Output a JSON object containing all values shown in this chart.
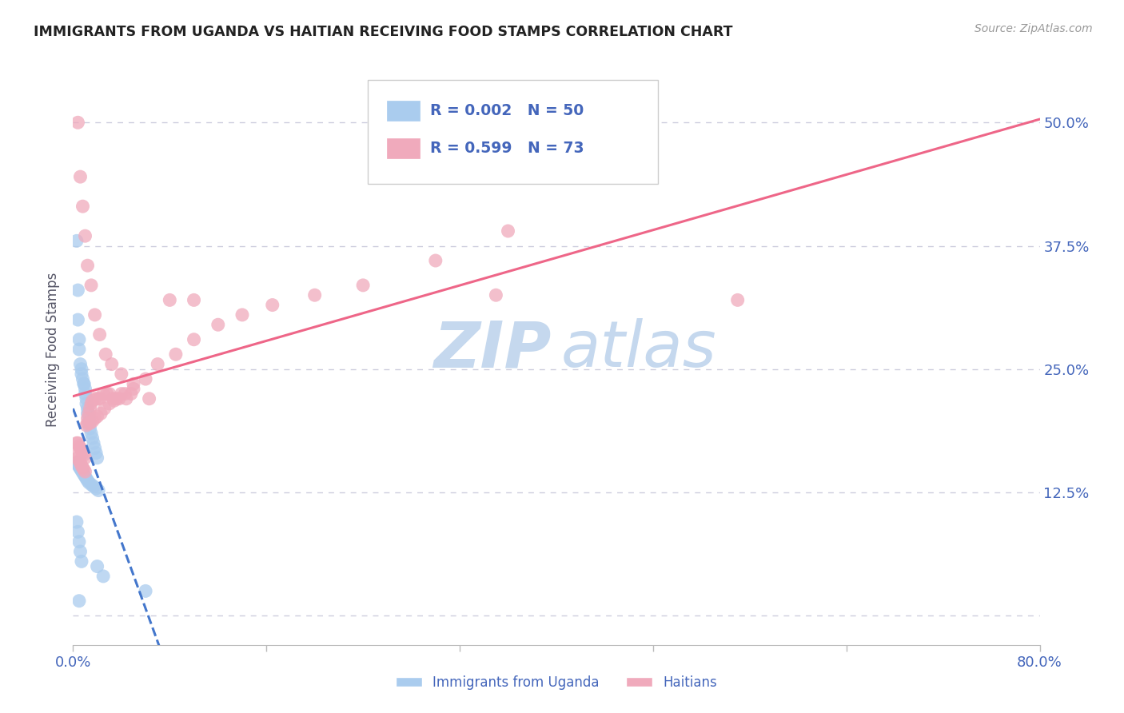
{
  "title": "IMMIGRANTS FROM UGANDA VS HAITIAN RECEIVING FOOD STAMPS CORRELATION CHART",
  "source": "Source: ZipAtlas.com",
  "ylabel": "Receiving Food Stamps",
  "uganda_R": 0.002,
  "uganda_N": 50,
  "haitian_R": 0.599,
  "haitian_N": 73,
  "uganda_color": "#aaccee",
  "haitian_color": "#f0aabc",
  "uganda_line_color": "#4477cc",
  "haitian_line_color": "#ee6688",
  "grid_color": "#ccccdd",
  "title_color": "#222222",
  "axis_label_color": "#4466bb",
  "watermark_color_zip": "#c5d8ee",
  "watermark_color_atlas": "#c5d8ee",
  "legend_label_uganda": "Immigrants from Uganda",
  "legend_label_haitian": "Haitians",
  "uganda_x": [
    0.003,
    0.004,
    0.004,
    0.005,
    0.005,
    0.006,
    0.007,
    0.007,
    0.008,
    0.009,
    0.009,
    0.01,
    0.01,
    0.011,
    0.011,
    0.012,
    0.012,
    0.013,
    0.013,
    0.014,
    0.015,
    0.016,
    0.017,
    0.018,
    0.019,
    0.02,
    0.003,
    0.004,
    0.005,
    0.006,
    0.007,
    0.008,
    0.009,
    0.01,
    0.011,
    0.012,
    0.013,
    0.015,
    0.017,
    0.019,
    0.021,
    0.003,
    0.004,
    0.005,
    0.006,
    0.007,
    0.02,
    0.025,
    0.06,
    0.005
  ],
  "uganda_y": [
    0.38,
    0.33,
    0.3,
    0.28,
    0.27,
    0.255,
    0.25,
    0.245,
    0.24,
    0.235,
    0.235,
    0.23,
    0.225,
    0.22,
    0.215,
    0.21,
    0.205,
    0.2,
    0.195,
    0.19,
    0.185,
    0.18,
    0.175,
    0.17,
    0.165,
    0.16,
    0.155,
    0.153,
    0.151,
    0.149,
    0.147,
    0.145,
    0.143,
    0.141,
    0.139,
    0.137,
    0.135,
    0.133,
    0.131,
    0.129,
    0.127,
    0.095,
    0.085,
    0.075,
    0.065,
    0.055,
    0.05,
    0.04,
    0.025,
    0.015
  ],
  "haitian_x": [
    0.003,
    0.004,
    0.005,
    0.006,
    0.007,
    0.008,
    0.009,
    0.01,
    0.011,
    0.012,
    0.013,
    0.014,
    0.015,
    0.016,
    0.018,
    0.02,
    0.022,
    0.025,
    0.028,
    0.03,
    0.033,
    0.036,
    0.04,
    0.044,
    0.048,
    0.003,
    0.004,
    0.005,
    0.006,
    0.007,
    0.008,
    0.009,
    0.01,
    0.012,
    0.014,
    0.016,
    0.018,
    0.02,
    0.023,
    0.026,
    0.03,
    0.034,
    0.038,
    0.043,
    0.05,
    0.06,
    0.07,
    0.085,
    0.1,
    0.12,
    0.14,
    0.165,
    0.2,
    0.24,
    0.3,
    0.36,
    0.55,
    0.004,
    0.006,
    0.008,
    0.01,
    0.012,
    0.015,
    0.018,
    0.022,
    0.027,
    0.032,
    0.04,
    0.05,
    0.063,
    0.08,
    0.1,
    0.35
  ],
  "haitian_y": [
    0.165,
    0.16,
    0.157,
    0.155,
    0.152,
    0.15,
    0.148,
    0.146,
    0.193,
    0.2,
    0.205,
    0.21,
    0.215,
    0.218,
    0.22,
    0.22,
    0.22,
    0.225,
    0.225,
    0.225,
    0.22,
    0.22,
    0.225,
    0.22,
    0.225,
    0.175,
    0.175,
    0.172,
    0.17,
    0.168,
    0.165,
    0.163,
    0.16,
    0.195,
    0.195,
    0.197,
    0.2,
    0.202,
    0.205,
    0.21,
    0.215,
    0.218,
    0.22,
    0.225,
    0.23,
    0.24,
    0.255,
    0.265,
    0.28,
    0.295,
    0.305,
    0.315,
    0.325,
    0.335,
    0.36,
    0.39,
    0.32,
    0.5,
    0.445,
    0.415,
    0.385,
    0.355,
    0.335,
    0.305,
    0.285,
    0.265,
    0.255,
    0.245,
    0.235,
    0.22,
    0.32,
    0.32,
    0.325
  ],
  "xlim": [
    0.0,
    0.8
  ],
  "ylim": [
    -0.03,
    0.57
  ],
  "y_ticks": [
    0.0,
    0.125,
    0.25,
    0.375,
    0.5
  ],
  "y_tick_labels": [
    "",
    "12.5%",
    "25.0%",
    "37.5%",
    "50.0%"
  ],
  "x_ticks": [
    0.0,
    0.16,
    0.32,
    0.48,
    0.64,
    0.8
  ],
  "x_tick_labels_show": [
    "0.0%",
    "80.0%"
  ]
}
